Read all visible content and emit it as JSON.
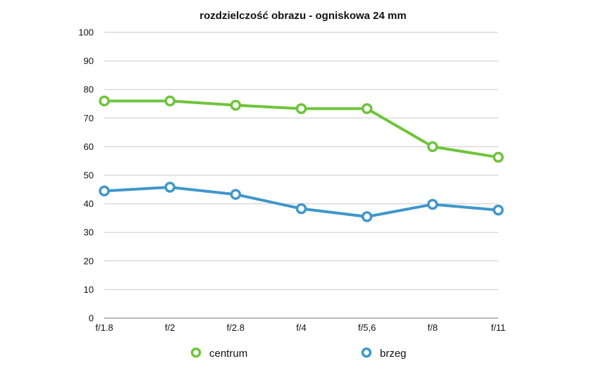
{
  "chart_data": {
    "type": "line",
    "title": "rozdzielczość obrazu - ogniskowa 24 mm",
    "xlabel": "",
    "ylabel": "",
    "categories": [
      "f/1.8",
      "f/2",
      "f/2.8",
      "f/4",
      "f/5,6",
      "f/8",
      "f/11"
    ],
    "ylim": [
      0,
      100
    ],
    "yticks": [
      0,
      10,
      20,
      30,
      40,
      50,
      60,
      70,
      80,
      90,
      100
    ],
    "grid": true,
    "legend_position": "bottom",
    "series": [
      {
        "name": "centrum",
        "color": "#6fc43a",
        "values": [
          76,
          76,
          74.5,
          73.3,
          73.3,
          60,
          56.3
        ]
      },
      {
        "name": "brzeg",
        "color": "#3f97cc",
        "values": [
          44.5,
          45.8,
          43.3,
          38.3,
          35.5,
          39.8,
          37.8
        ]
      }
    ]
  }
}
